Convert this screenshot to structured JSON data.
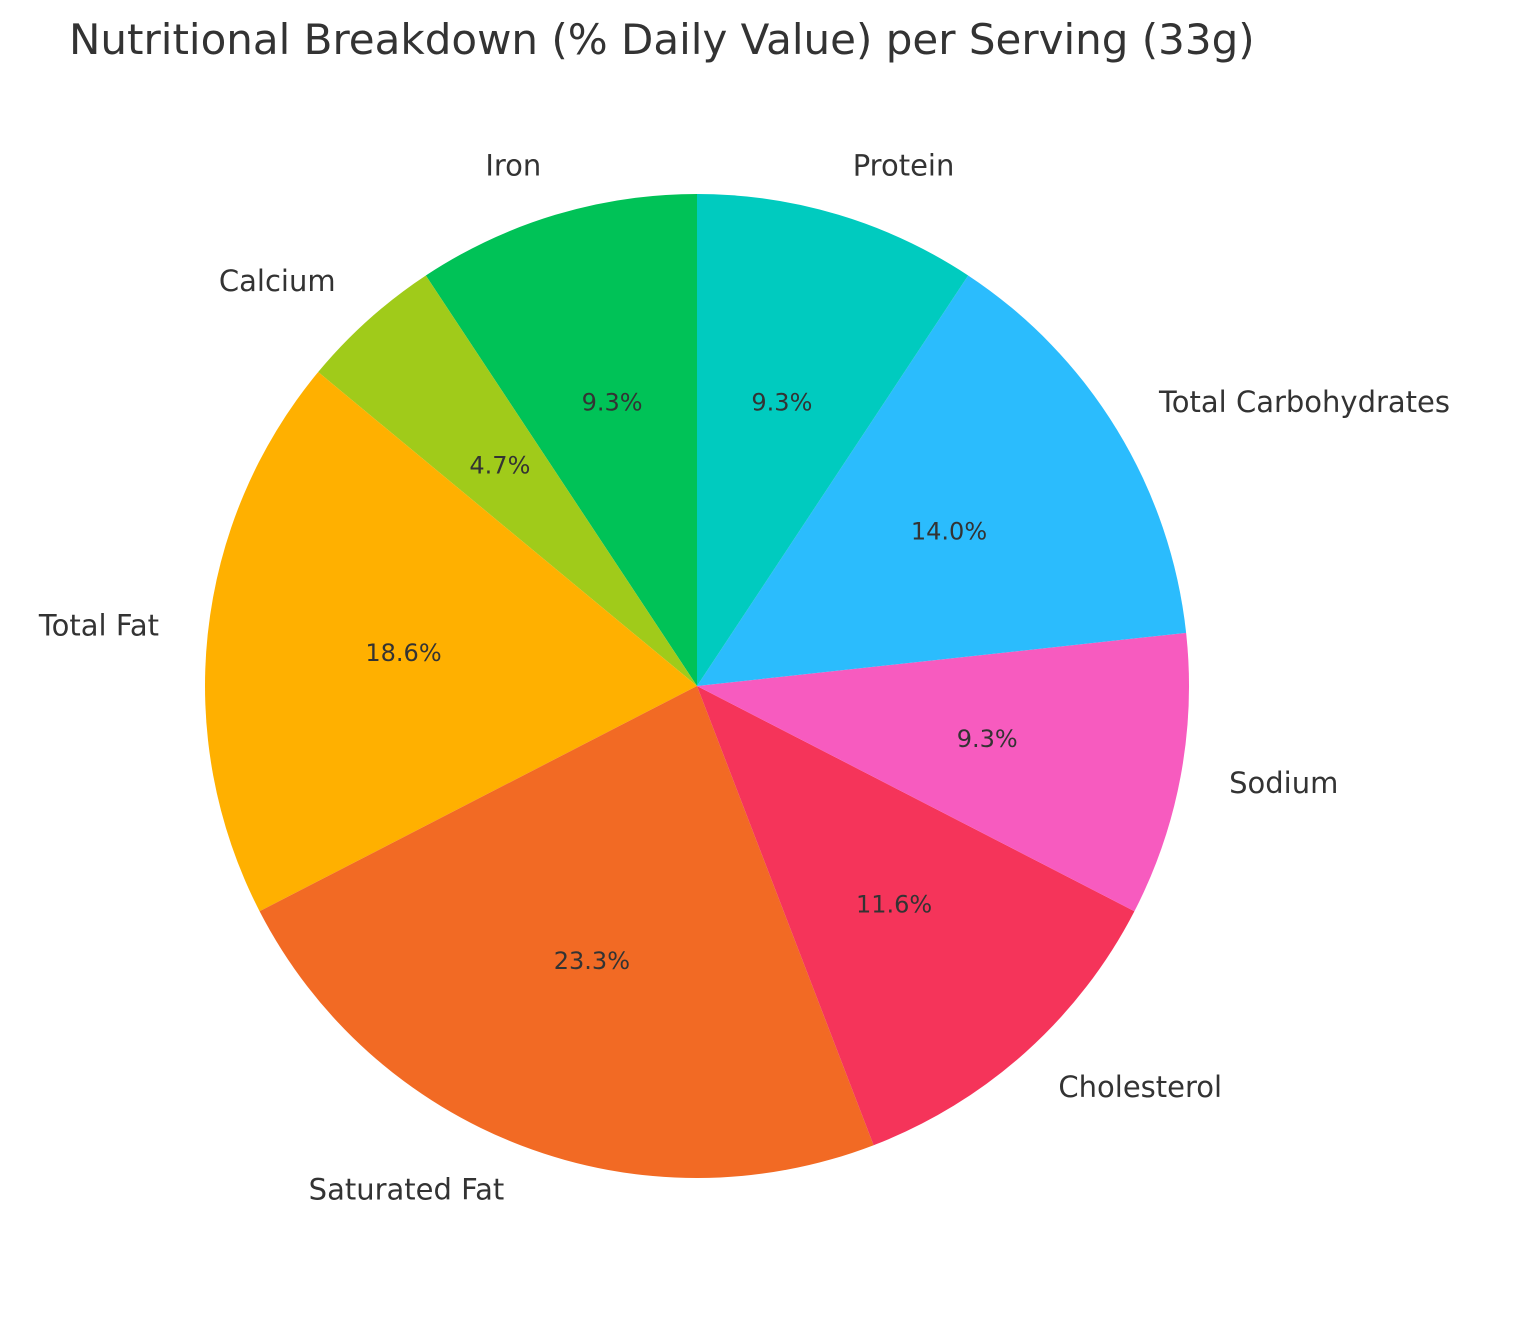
{
  "chart_data": {
    "type": "pie",
    "title": "Nutritional Breakdown (% Daily Value) per Serving (33g)",
    "start_angle_deg": 90,
    "direction": "counterclockwise",
    "slices": [
      {
        "label": "Iron",
        "value": 9.3,
        "pct_label": "9.3%",
        "color": "#00c257"
      },
      {
        "label": "Calcium",
        "value": 4.7,
        "pct_label": "4.7%",
        "color": "#a0cb1a"
      },
      {
        "label": "Total Fat",
        "value": 18.6,
        "pct_label": "18.6%",
        "color": "#ffb000"
      },
      {
        "label": "Saturated Fat",
        "value": 23.3,
        "pct_label": "23.3%",
        "color": "#f26a24"
      },
      {
        "label": "Cholesterol",
        "value": 11.6,
        "pct_label": "11.6%",
        "color": "#f5345a"
      },
      {
        "label": "Sodium",
        "value": 9.3,
        "pct_label": "9.3%",
        "color": "#f75bbf"
      },
      {
        "label": "Total Carbohydrates",
        "value": 14.0,
        "pct_label": "14.0%",
        "color": "#2bbcfd"
      },
      {
        "label": "Protein",
        "value": 9.3,
        "pct_label": "9.3%",
        "color": "#00cbbf"
      }
    ]
  }
}
